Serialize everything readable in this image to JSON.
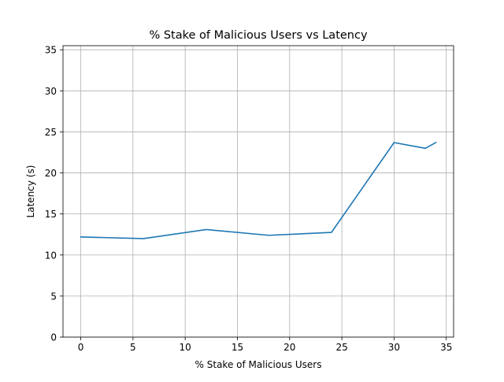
{
  "chart_data": {
    "type": "line",
    "title": "% Stake of Malicious Users vs Latency",
    "xlabel": "% Stake of Malicious Users",
    "ylabel": "Latency (s)",
    "xlim": [
      -1.7,
      35.7
    ],
    "ylim": [
      0,
      35.5
    ],
    "xticks": [
      0,
      5,
      10,
      15,
      20,
      25,
      30,
      35
    ],
    "yticks": [
      0,
      5,
      10,
      15,
      20,
      25,
      30,
      35
    ],
    "grid": true,
    "series": [
      {
        "color": "#1f77b4",
        "x": [
          0,
          6,
          12,
          18,
          24,
          30,
          33,
          34
        ],
        "y": [
          12.2,
          12.0,
          13.1,
          12.4,
          12.75,
          23.7,
          23.0,
          23.7
        ]
      }
    ]
  }
}
